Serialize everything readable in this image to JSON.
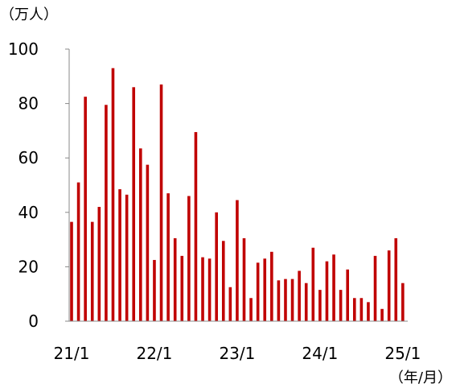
{
  "chart_data": {
    "type": "bar",
    "y_unit": "（万人）",
    "x_unit": "（年/月）",
    "ylim": [
      0,
      100
    ],
    "yticks": [
      0,
      20,
      40,
      60,
      80,
      100
    ],
    "x_tick_labels": [
      {
        "label": "21/1",
        "index": 0
      },
      {
        "label": "22/1",
        "index": 12
      },
      {
        "label": "23/1",
        "index": 24
      },
      {
        "label": "24/1",
        "index": 36
      },
      {
        "label": "25/1",
        "index": 48
      }
    ],
    "bar_color": "#c00000",
    "grid": false,
    "legend": "none",
    "values": [
      36.5,
      51,
      82.5,
      36.5,
      42,
      79.5,
      93,
      48.5,
      46.5,
      86,
      63.5,
      57.5,
      22.5,
      87,
      47,
      30.5,
      24,
      46,
      69.5,
      23.5,
      23,
      40,
      29.5,
      12.5,
      44.5,
      30.5,
      8.5,
      21.5,
      23,
      25.5,
      15,
      15.5,
      15.5,
      18.5,
      14,
      27,
      11.5,
      22,
      24.5,
      11.5,
      19,
      8.5,
      8.5,
      7,
      24,
      4.5,
      26,
      30.5,
      14
    ]
  }
}
